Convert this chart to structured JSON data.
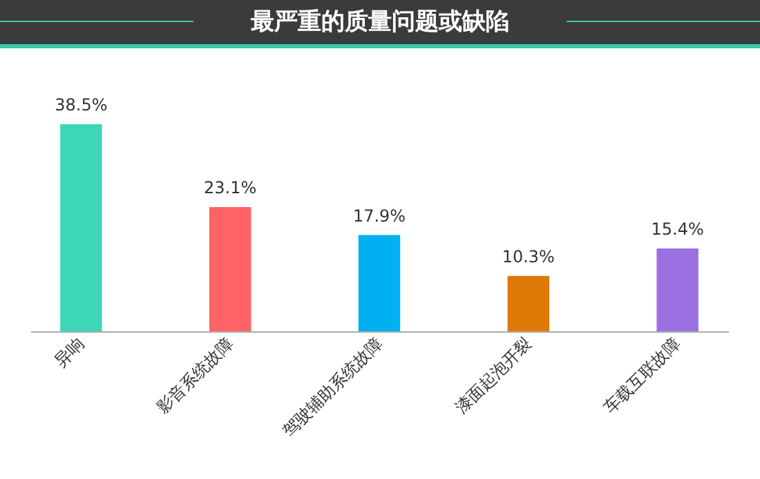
{
  "chart_data": {
    "type": "bar",
    "title": "最严重的质量问题或缺陷",
    "categories": [
      "异响",
      "影音系统故障",
      "驾驶辅助系统故障",
      "漆面起泡开裂",
      "车载互联故障"
    ],
    "values": [
      38.5,
      23.1,
      17.9,
      10.3,
      15.4
    ],
    "colors": [
      "#3dd6b8",
      "#ff6366",
      "#00b0f0",
      "#e07808",
      "#9b70e0"
    ],
    "value_labels": [
      "38.5%",
      "23.1%",
      "17.9%",
      "10.3%",
      "15.4%"
    ]
  }
}
